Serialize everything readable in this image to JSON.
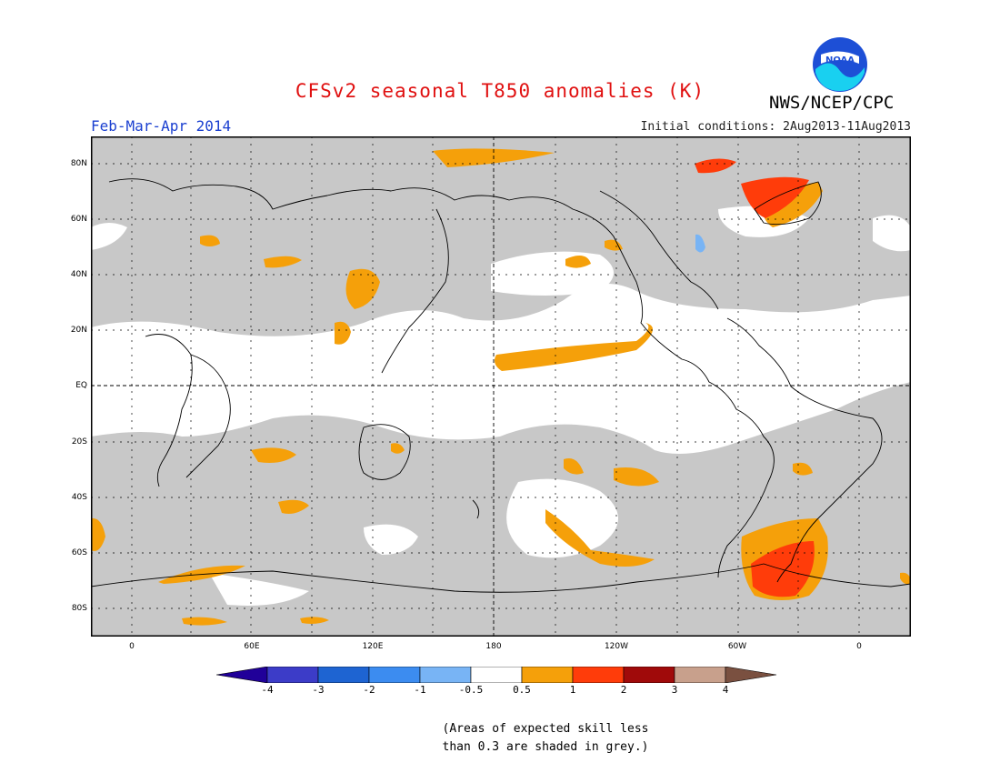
{
  "title": "CFSv2 seasonal T850 anomalies (K)",
  "season": "Feb-Mar-Apr 2014",
  "initial_conditions": "Initial conditions: 2Aug2013-11Aug2013",
  "agency": "NWS/NCEP/CPC",
  "logo_text": "NOAA",
  "note_line1": "(Areas of expected skill less",
  "note_line2": "than 0.3 are shaded in grey.)",
  "lat_labels": [
    "80N",
    "60N",
    "40N",
    "20N",
    "EQ",
    "20S",
    "40S",
    "60S",
    "80S"
  ],
  "lon_labels": [
    "0",
    "60E",
    "120E",
    "180",
    "120W",
    "60W",
    "0"
  ],
  "colorbar": {
    "labels": [
      "-4",
      "-3",
      "-2",
      "-1",
      "-0.5",
      "0.5",
      "1",
      "2",
      "3",
      "4"
    ],
    "colors": [
      "#200099",
      "#3c3cc8",
      "#1e64d2",
      "#3c8cf0",
      "#78b4f5",
      "#ffffff",
      "#f5a00a",
      "#ff3c0a",
      "#a00a0a",
      "#c8a08c",
      "#7a5040"
    ]
  },
  "legend_colors": {
    "low_skill": "#c8c8c8",
    "anomaly_0_5_to_1": "#f5a00a",
    "anomaly_1_to_2": "#ff3c0a",
    "anomaly_minus_0_5_to_minus_1": "#78b4f5"
  }
}
